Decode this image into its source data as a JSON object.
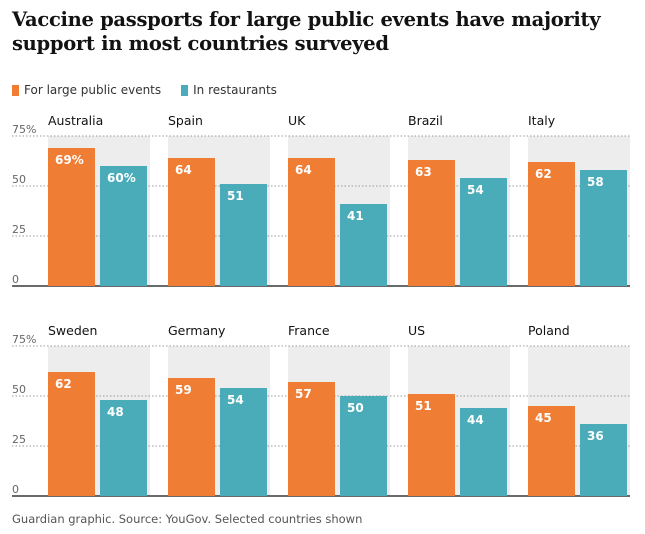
{
  "title": "Vaccine passports for large public events have majority support in most countries surveyed",
  "source": "Guardian graphic. Source: YouGov. Selected countries shown",
  "chart_data": {
    "type": "bar",
    "ylim": [
      0,
      75
    ],
    "yticks": [
      0,
      25,
      50,
      75
    ],
    "ytick_labels": [
      "0",
      "25",
      "50",
      "75%"
    ],
    "grid": true,
    "legend_position": "top-left",
    "series": [
      {
        "name": "For large public events",
        "color": "#f07d34"
      },
      {
        "name": "In restaurants",
        "color": "#4aacb9"
      }
    ],
    "panels": [
      {
        "country": "Australia",
        "values": [
          69,
          60
        ],
        "labels": [
          "69%",
          "60%"
        ]
      },
      {
        "country": "Spain",
        "values": [
          64,
          51
        ],
        "labels": [
          "64",
          "51"
        ]
      },
      {
        "country": "UK",
        "values": [
          64,
          41
        ],
        "labels": [
          "64",
          "41"
        ]
      },
      {
        "country": "Brazil",
        "values": [
          63,
          54
        ],
        "labels": [
          "63",
          "54"
        ]
      },
      {
        "country": "Italy",
        "values": [
          62,
          58
        ],
        "labels": [
          "62",
          "58"
        ]
      },
      {
        "country": "Sweden",
        "values": [
          62,
          48
        ],
        "labels": [
          "62",
          "48"
        ]
      },
      {
        "country": "Germany",
        "values": [
          59,
          54
        ],
        "labels": [
          "59",
          "54"
        ]
      },
      {
        "country": "France",
        "values": [
          57,
          50
        ],
        "labels": [
          "57",
          "50"
        ]
      },
      {
        "country": "US",
        "values": [
          51,
          44
        ],
        "labels": [
          "51",
          "44"
        ]
      },
      {
        "country": "Poland",
        "values": [
          45,
          36
        ],
        "labels": [
          "45",
          "36"
        ]
      }
    ]
  }
}
